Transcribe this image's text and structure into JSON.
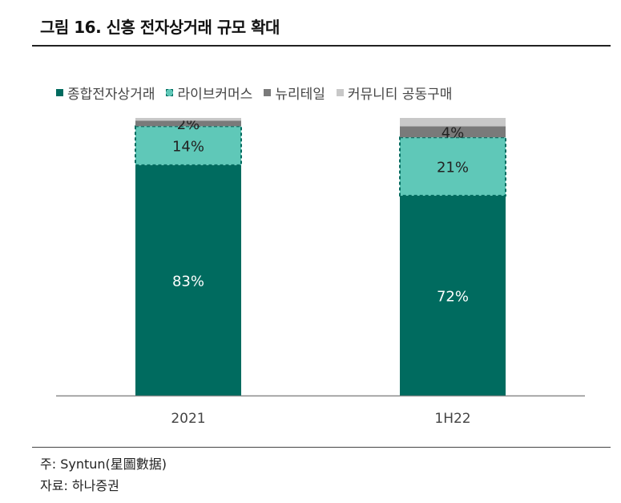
{
  "title": "그림 16. 신흥 전자상거래 규모 확대",
  "legend": [
    {
      "label": "종합전자상거래",
      "color": "#006b5f"
    },
    {
      "label": "라이브커머스",
      "color": "#5fc8b8"
    },
    {
      "label": "뉴리테일",
      "color": "#7a7a7a"
    },
    {
      "label": "커뮤니티 공동구매",
      "color": "#c8c8c8"
    }
  ],
  "chart_data": {
    "type": "bar",
    "stacked": true,
    "categories": [
      "2021",
      "1H22"
    ],
    "series": [
      {
        "name": "종합전자상거래",
        "values": [
          83,
          72
        ],
        "labels": [
          "83%",
          "72%"
        ],
        "color": "#006b5f"
      },
      {
        "name": "라이브커머스",
        "values": [
          14,
          21
        ],
        "labels": [
          "14%",
          "21%"
        ],
        "color": "#5fc8b8"
      },
      {
        "name": "뉴리테일",
        "values": [
          2,
          4
        ],
        "labels": [
          "2%",
          "4%"
        ],
        "color": "#7a7a7a"
      },
      {
        "name": "커뮤니티 공동구매",
        "values": [
          1,
          3
        ],
        "labels": [
          "",
          ""
        ],
        "color": "#c8c8c8"
      }
    ],
    "title": "그림 16. 신흥 전자상거래 규모 확대",
    "xlabel": "",
    "ylabel": "",
    "ylim": [
      0,
      100
    ],
    "grid": false,
    "legend_position": "top"
  },
  "notes": {
    "source": "주: Syntun(星圖數据)",
    "data": "자료: 하나증권"
  }
}
